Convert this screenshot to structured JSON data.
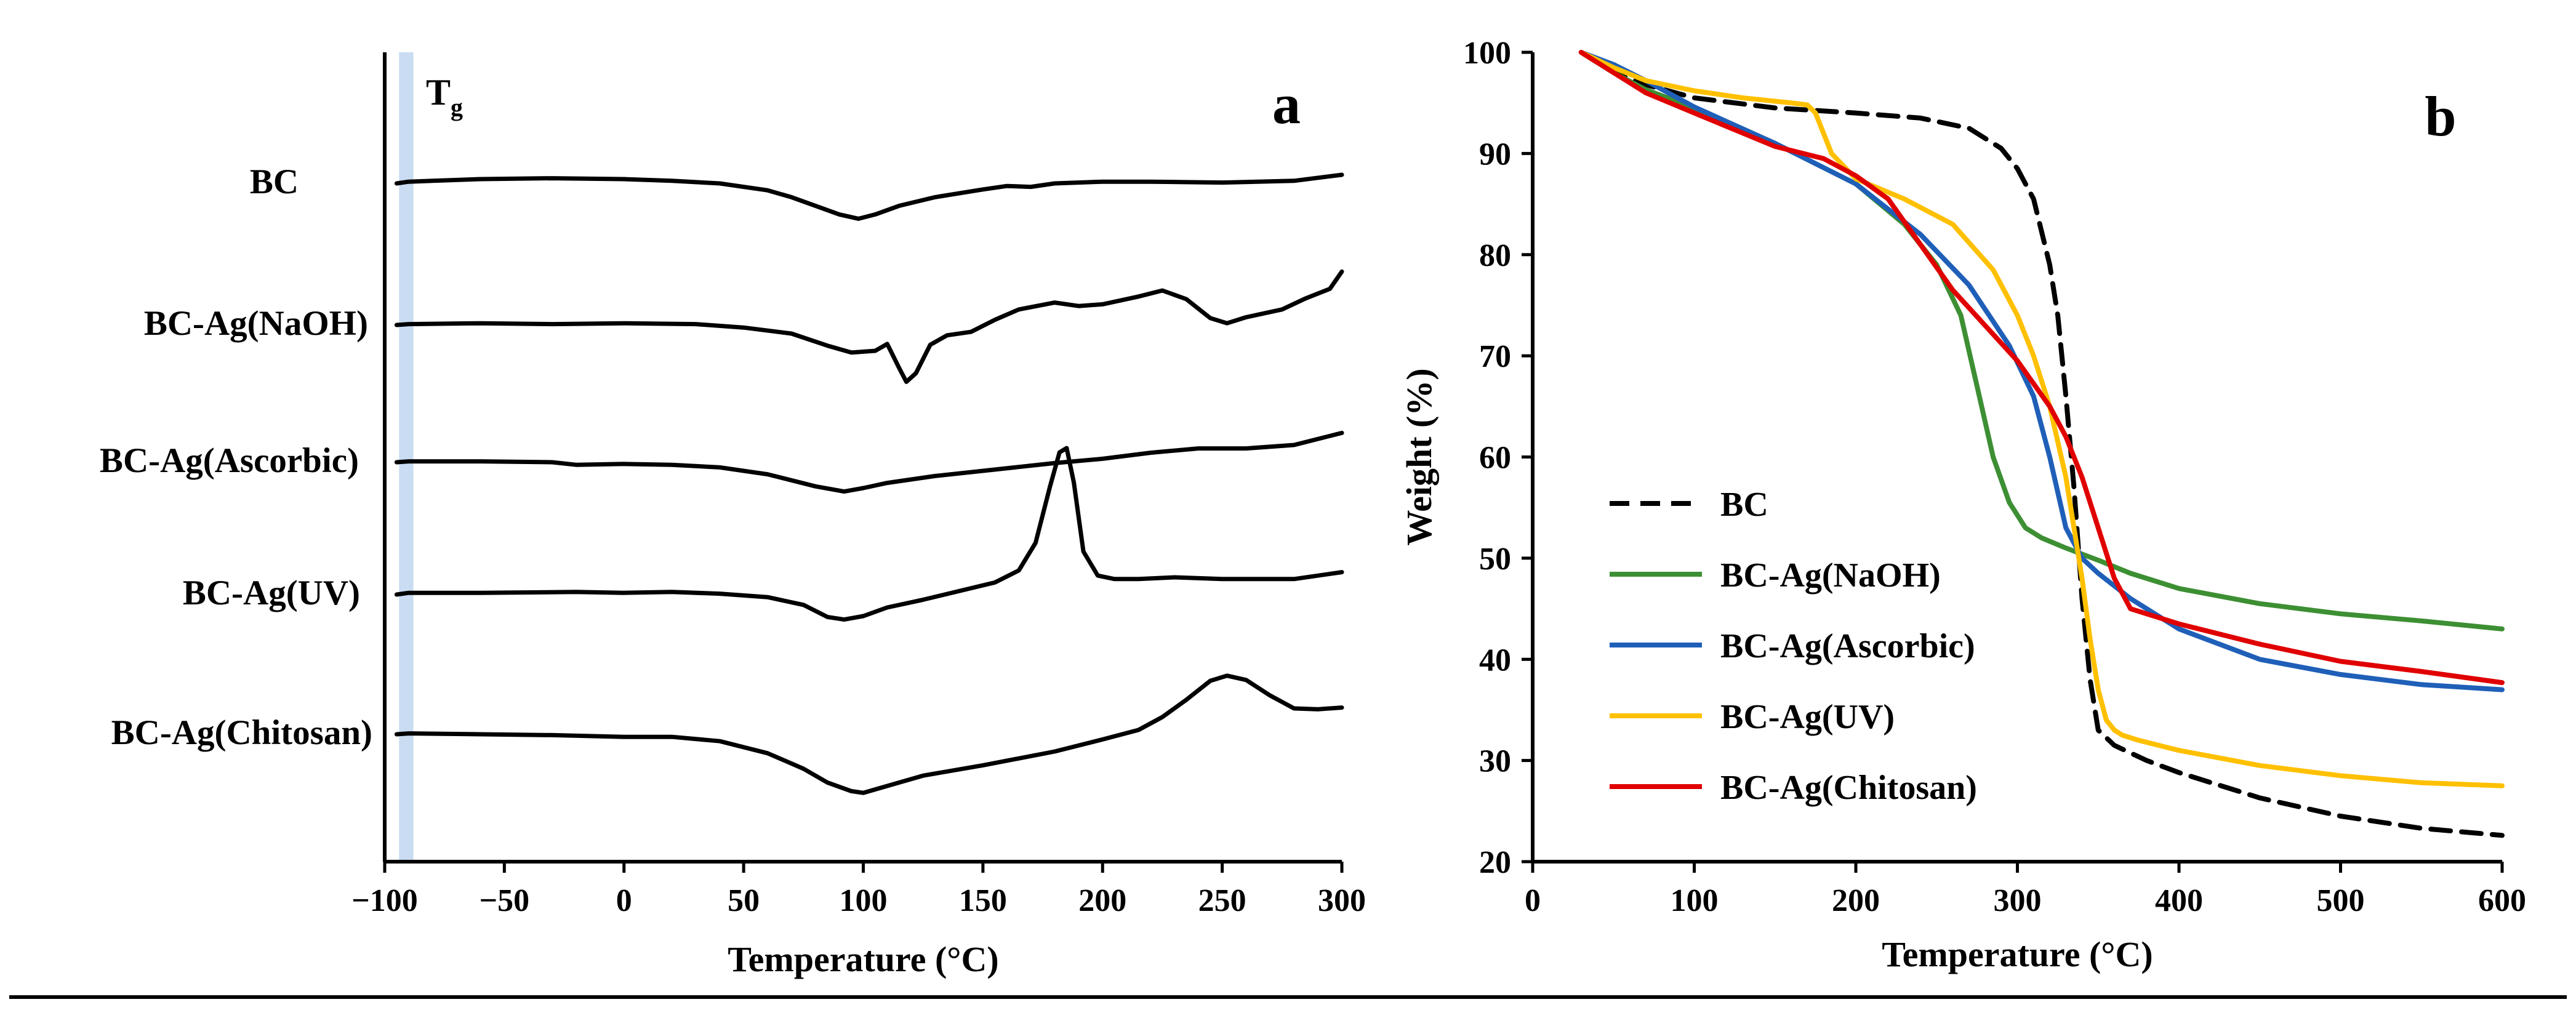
{
  "figure": {
    "bottom_rule": true
  },
  "chart_data": [
    {
      "panel": "a",
      "type": "line",
      "title": "",
      "xlabel": "Temperature (°C)",
      "ylabel": "",
      "xlim": [
        -100,
        300
      ],
      "xticks": [
        -100,
        -50,
        0,
        50,
        100,
        150,
        200,
        250,
        300
      ],
      "xtick_labels": [
        "−100",
        "−50",
        "0",
        "50",
        "100",
        "150",
        "200",
        "250",
        "300"
      ],
      "y_axis_values_shown": false,
      "annotation": {
        "text": "T",
        "subscript": "g",
        "band_x": [
          -94,
          -88
        ],
        "band_color": "#c9dcf2"
      },
      "series_offsets_note": "curves are vertically stacked; values are relative heat-flow signal per curve",
      "series": [
        {
          "name": "BC",
          "color": "#000000",
          "offset": 0.0,
          "x": [
            -95,
            -90,
            -80,
            -60,
            -30,
            0,
            20,
            40,
            60,
            70,
            80,
            90,
            98,
            105,
            115,
            130,
            150,
            160,
            170,
            180,
            200,
            220,
            250,
            280,
            300
          ],
          "y": [
            0,
            0.2,
            0.3,
            0.5,
            0.6,
            0.5,
            0.3,
            0,
            -0.8,
            -1.6,
            -2.6,
            -3.6,
            -4.1,
            -3.6,
            -2.6,
            -1.6,
            -0.7,
            -0.3,
            -0.4,
            0,
            0.2,
            0.2,
            0.1,
            0.3,
            1.0
          ]
        },
        {
          "name": "BC-Ag(NaOH)",
          "color": "#000000",
          "offset": -8.5,
          "x": [
            -95,
            -90,
            -60,
            -30,
            0,
            30,
            50,
            70,
            85,
            95,
            105,
            110,
            115,
            118,
            122,
            128,
            135,
            145,
            155,
            165,
            180,
            190,
            200,
            215,
            225,
            235,
            245,
            252,
            260,
            275,
            285,
            295,
            300
          ],
          "y": [
            0,
            0.1,
            0.2,
            0.1,
            0.2,
            0.1,
            -0.3,
            -1.0,
            -2.4,
            -3.2,
            -3.0,
            -2.2,
            -5.0,
            -6.6,
            -5.6,
            -2.3,
            -1.2,
            -0.8,
            0.6,
            1.8,
            2.6,
            2.2,
            2.4,
            3.3,
            4.0,
            3.0,
            0.8,
            0.2,
            0.9,
            1.8,
            3.1,
            4.2,
            6.2
          ]
        },
        {
          "name": "BC-Ag(Ascorbic)",
          "color": "#000000",
          "offset": -17.0,
          "x": [
            -95,
            -90,
            -60,
            -30,
            -20,
            0,
            20,
            40,
            60,
            80,
            92,
            100,
            110,
            130,
            150,
            180,
            200,
            220,
            240,
            260,
            280,
            300
          ],
          "y": [
            0,
            0.1,
            0.1,
            0,
            -0.3,
            -0.2,
            -0.3,
            -0.6,
            -1.4,
            -2.8,
            -3.4,
            -3.0,
            -2.4,
            -1.6,
            -1.0,
            -0.1,
            0.4,
            1.1,
            1.6,
            1.6,
            2.0,
            3.4
          ]
        },
        {
          "name": "BC-Ag(UV)",
          "color": "#000000",
          "offset": -26.0,
          "x": [
            -95,
            -90,
            -60,
            -20,
            0,
            20,
            40,
            60,
            75,
            85,
            92,
            100,
            110,
            125,
            140,
            155,
            165,
            172,
            178,
            182,
            185,
            188,
            192,
            198,
            205,
            215,
            230,
            250,
            280,
            300
          ],
          "y": [
            0,
            0.2,
            0.2,
            0.3,
            0.2,
            0.3,
            0.1,
            -0.3,
            -1.2,
            -2.6,
            -2.9,
            -2.5,
            -1.5,
            -0.6,
            0.4,
            1.4,
            2.8,
            6.0,
            12.5,
            16.5,
            17.0,
            13.0,
            5.0,
            2.2,
            1.8,
            1.8,
            2.0,
            1.8,
            1.8,
            2.6
          ]
        },
        {
          "name": "BC-Ag(Chitosan)",
          "color": "#000000",
          "offset": -35.0,
          "x": [
            -95,
            -90,
            -60,
            -30,
            0,
            20,
            40,
            60,
            75,
            85,
            95,
            100,
            110,
            125,
            150,
            180,
            200,
            215,
            225,
            235,
            245,
            252,
            260,
            270,
            280,
            290,
            300
          ],
          "y": [
            0,
            0.1,
            0,
            -0.1,
            -0.3,
            -0.3,
            -0.8,
            -2.2,
            -4.0,
            -5.6,
            -6.6,
            -6.8,
            -6.0,
            -4.8,
            -3.6,
            -2.0,
            -0.6,
            0.5,
            2.0,
            4.0,
            6.2,
            6.8,
            6.3,
            4.5,
            3.0,
            2.9,
            3.1
          ]
        }
      ]
    },
    {
      "panel": "b",
      "type": "line",
      "title": "",
      "xlabel": "Temperature (°C)",
      "ylabel": "Weight (%)",
      "xlim": [
        0,
        600
      ],
      "ylim": [
        20,
        100
      ],
      "xticks": [
        0,
        100,
        200,
        300,
        400,
        500,
        600
      ],
      "yticks": [
        20,
        30,
        40,
        50,
        60,
        70,
        80,
        90,
        100
      ],
      "legend_position": "left-center",
      "series": [
        {
          "name": "BC",
          "color": "#000000",
          "dash": true,
          "x": [
            30,
            50,
            70,
            100,
            150,
            200,
            240,
            270,
            290,
            300,
            310,
            320,
            325,
            330,
            335,
            340,
            345,
            350,
            360,
            380,
            400,
            450,
            500,
            550,
            600
          ],
          "y": [
            100,
            98,
            96.8,
            95.5,
            94.5,
            94,
            93.5,
            92.5,
            90.5,
            88.5,
            85.5,
            79,
            74,
            66,
            57,
            46,
            38,
            33,
            31.5,
            30,
            28.8,
            26.3,
            24.5,
            23.3,
            22.6
          ]
        },
        {
          "name": "BC-Ag(NaOH)",
          "color": "#3d8f33",
          "x": [
            30,
            50,
            70,
            100,
            150,
            200,
            230,
            250,
            265,
            275,
            285,
            295,
            305,
            315,
            330,
            350,
            370,
            400,
            450,
            500,
            550,
            600
          ],
          "y": [
            100,
            98,
            96.3,
            94.5,
            91,
            87,
            83,
            79,
            74,
            67,
            60,
            55.5,
            53,
            52,
            51,
            49.8,
            48.5,
            47,
            45.5,
            44.5,
            43.8,
            43
          ]
        },
        {
          "name": "BC-Ag(Ascorbic)",
          "color": "#1f5fb8",
          "x": [
            30,
            50,
            70,
            100,
            150,
            200,
            240,
            270,
            295,
            310,
            320,
            330,
            340,
            350,
            370,
            400,
            450,
            500,
            550,
            600
          ],
          "y": [
            100,
            98.8,
            97.2,
            94.6,
            91,
            87,
            82,
            77,
            71,
            66,
            60,
            53,
            50,
            48.5,
            46,
            43,
            40,
            38.5,
            37.5,
            37
          ]
        },
        {
          "name": "BC-Ag(UV)",
          "color": "#ffc000",
          "x": [
            30,
            50,
            70,
            100,
            130,
            160,
            170,
            175,
            180,
            185,
            200,
            230,
            260,
            285,
            300,
            310,
            320,
            330,
            340,
            345,
            350,
            355,
            360,
            365,
            375,
            400,
            450,
            500,
            550,
            600
          ],
          "y": [
            100,
            98.5,
            97.2,
            96.2,
            95.5,
            95,
            94.8,
            94,
            92,
            90,
            87.5,
            85.5,
            83,
            78.5,
            74,
            70,
            65,
            58,
            48,
            42,
            37,
            34,
            33,
            32.5,
            32,
            31,
            29.5,
            28.5,
            27.8,
            27.5
          ]
        },
        {
          "name": "BC-Ag(Chitosan)",
          "color": "#e00000",
          "x": [
            30,
            50,
            70,
            100,
            150,
            180,
            200,
            220,
            240,
            260,
            280,
            300,
            320,
            330,
            340,
            350,
            360,
            370,
            380,
            400,
            450,
            500,
            550,
            600
          ],
          "y": [
            100,
            98,
            96,
            94,
            90.7,
            89.5,
            87.8,
            85.5,
            81,
            76.5,
            73,
            69.5,
            65,
            62,
            58,
            53,
            48,
            45,
            44.5,
            43.5,
            41.5,
            39.8,
            38.8,
            37.7
          ]
        }
      ]
    }
  ]
}
